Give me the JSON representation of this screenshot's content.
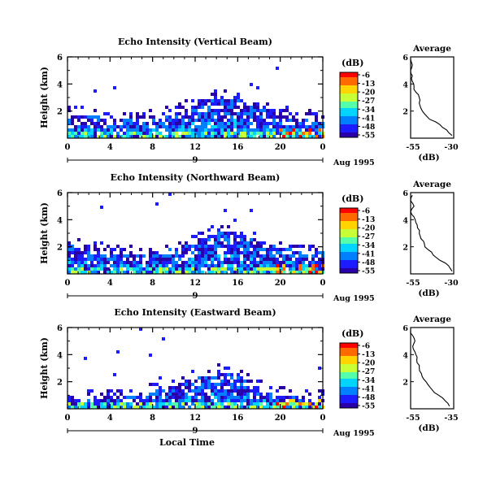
{
  "colorbar": {
    "unit": "(dB)",
    "ticks": [
      "-6",
      "-13",
      "-20",
      "-27",
      "-34",
      "-41",
      "-48",
      "-55"
    ],
    "colors": [
      "#ff0000",
      "#ff6a00",
      "#ffd400",
      "#c8ff37",
      "#55ffaa",
      "#00d4ff",
      "#0080ff",
      "#1c1cff",
      "#2a00a8"
    ]
  },
  "shared": {
    "ylabel": "Height (km)",
    "date_label": "Aug 1995",
    "day_marker": "9",
    "xlabel": "Local Time",
    "avg_title": "Average",
    "avg_xlabel": "(dB)"
  },
  "chart_data": [
    {
      "type": "heatmap",
      "title": "Echo Intensity (Vertical Beam)",
      "xlabel": "",
      "ylabel": "Height (km)",
      "x_ticks": [
        "0",
        "4",
        "8",
        "12",
        "16",
        "20",
        "0"
      ],
      "xlim": [
        0,
        24
      ],
      "ylim": [
        0,
        6
      ],
      "y_ticks": [
        "2",
        "4",
        "6"
      ],
      "echo_top_km": [
        [
          0,
          1.9
        ],
        [
          2,
          1.8
        ],
        [
          4,
          1.6
        ],
        [
          6,
          1.5
        ],
        [
          8,
          1.6
        ],
        [
          10,
          2.0
        ],
        [
          12,
          2.6
        ],
        [
          14,
          3.2
        ],
        [
          16,
          3.0
        ],
        [
          18,
          2.3
        ],
        [
          20,
          1.9
        ],
        [
          22,
          1.6
        ],
        [
          24,
          1.5
        ]
      ],
      "avg_profile": {
        "xlim": [
          -55,
          -30
        ],
        "x_ticks": [
          "-55",
          "-30"
        ],
        "y_ticks": [
          "2",
          "4",
          "6"
        ],
        "height_km": [
          0.2,
          0.6,
          1.0,
          1.4,
          1.8,
          2.2,
          2.6,
          3.0,
          3.4,
          3.8,
          4.2,
          4.6,
          5.0,
          5.4,
          5.8
        ],
        "db": [
          -31,
          -34,
          -38,
          -44,
          -47,
          -49,
          -50,
          -50,
          -52,
          -53,
          -54,
          -54,
          -55,
          -54,
          -55
        ]
      }
    },
    {
      "type": "heatmap",
      "title": "Echo Intensity (Northward Beam)",
      "xlabel": "",
      "ylabel": "Height (km)",
      "x_ticks": [
        "0",
        "4",
        "8",
        "12",
        "16",
        "20",
        "0"
      ],
      "xlim": [
        0,
        24
      ],
      "ylim": [
        0,
        6
      ],
      "y_ticks": [
        "2",
        "4",
        "6"
      ],
      "echo_top_km": [
        [
          0,
          2.2
        ],
        [
          2,
          2.0
        ],
        [
          4,
          1.8
        ],
        [
          6,
          1.6
        ],
        [
          8,
          1.7
        ],
        [
          10,
          2.0
        ],
        [
          12,
          2.6
        ],
        [
          14,
          3.2
        ],
        [
          16,
          3.1
        ],
        [
          18,
          2.5
        ],
        [
          20,
          2.0
        ],
        [
          22,
          1.8
        ],
        [
          24,
          1.7
        ]
      ],
      "avg_profile": {
        "xlim": [
          -55,
          -30
        ],
        "x_ticks": [
          "-55",
          "-30"
        ],
        "y_ticks": [
          "2",
          "4",
          "6"
        ],
        "height_km": [
          0.2,
          0.6,
          1.0,
          1.4,
          1.8,
          2.2,
          2.6,
          3.0,
          3.4,
          3.8,
          4.2,
          4.6,
          5.0,
          5.4,
          5.8
        ],
        "db": [
          -31,
          -33,
          -38,
          -42,
          -45,
          -47,
          -49,
          -50,
          -51,
          -52,
          -53,
          -55,
          -53,
          -55,
          -54
        ]
      }
    },
    {
      "type": "heatmap",
      "title": "Echo Intensity (Eastward Beam)",
      "xlabel": "Local Time",
      "ylabel": "Height (km)",
      "x_ticks": [
        "0",
        "4",
        "8",
        "12",
        "16",
        "20",
        "0"
      ],
      "xlim": [
        0,
        24
      ],
      "ylim": [
        0,
        6
      ],
      "y_ticks": [
        "2",
        "4",
        "6"
      ],
      "echo_top_km": [
        [
          0,
          0.8
        ],
        [
          2,
          0.9
        ],
        [
          4,
          1.0
        ],
        [
          6,
          1.1
        ],
        [
          8,
          1.4
        ],
        [
          10,
          1.8
        ],
        [
          12,
          2.4
        ],
        [
          14,
          2.9
        ],
        [
          16,
          2.6
        ],
        [
          18,
          1.6
        ],
        [
          20,
          1.1
        ],
        [
          22,
          1.0
        ],
        [
          24,
          0.9
        ]
      ],
      "avg_profile": {
        "xlim": [
          -55,
          -35
        ],
        "x_ticks": [
          "-55",
          "-35"
        ],
        "y_ticks": [
          "2",
          "4",
          "6"
        ],
        "height_km": [
          0.2,
          0.6,
          1.0,
          1.4,
          1.8,
          2.2,
          2.6,
          3.0,
          3.4,
          3.8,
          4.2,
          4.6,
          5.0,
          5.4,
          5.8
        ],
        "db": [
          -37,
          -39,
          -42,
          -45,
          -47,
          -49,
          -50,
          -51,
          -52,
          -52,
          -53,
          -54,
          -53,
          -54,
          -55
        ]
      }
    }
  ]
}
